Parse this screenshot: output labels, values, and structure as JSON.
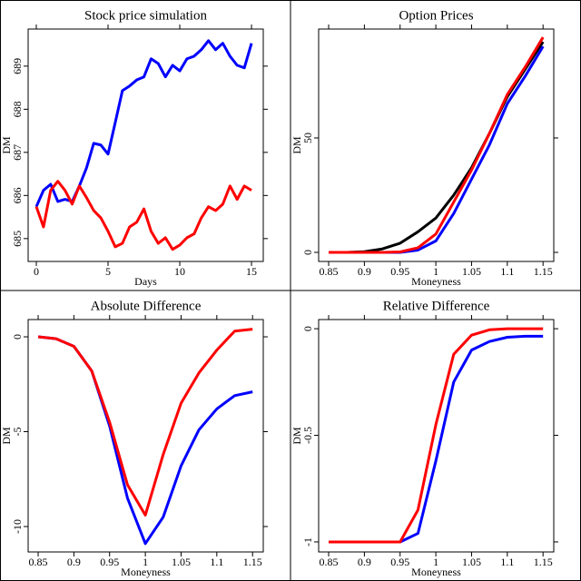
{
  "chart_data": [
    {
      "type": "line",
      "title": "Stock price simulation",
      "xlabel": "Days",
      "ylabel": "DM",
      "x": [
        0,
        0.5,
        1,
        1.5,
        2,
        2.5,
        3,
        3.5,
        4,
        4.5,
        5,
        5.5,
        6,
        6.5,
        7,
        7.5,
        8,
        8.5,
        9,
        9.5,
        10,
        10.5,
        11,
        11.5,
        12,
        12.5,
        13,
        13.5,
        14,
        14.5,
        15
      ],
      "series": [
        {
          "color": "#0000ff",
          "values": [
            685.74,
            686.12,
            686.26,
            685.86,
            685.91,
            685.86,
            686.22,
            686.64,
            687.21,
            687.17,
            686.96,
            687.69,
            688.43,
            688.54,
            688.68,
            688.75,
            689.17,
            689.06,
            688.75,
            689.02,
            688.89,
            689.17,
            689.23,
            689.38,
            689.59,
            689.38,
            689.53,
            689.23,
            689.02,
            688.96,
            689.53
          ]
        },
        {
          "color": "#ff0000",
          "values": [
            685.74,
            685.27,
            686.12,
            686.33,
            686.12,
            685.8,
            686.22,
            685.95,
            685.65,
            685.48,
            685.17,
            684.81,
            684.89,
            685.27,
            685.38,
            685.69,
            685.17,
            684.89,
            685.02,
            684.75,
            684.85,
            685.02,
            685.11,
            685.48,
            685.74,
            685.65,
            685.8,
            686.22,
            685.91,
            686.22,
            686.12
          ]
        }
      ],
      "xlim": [
        -0.57,
        15.82
      ],
      "ylim": [
        684.47,
        689.86
      ],
      "xticks": [
        0,
        5,
        10,
        15
      ],
      "yticks": [
        685,
        686,
        687,
        688,
        689
      ]
    },
    {
      "type": "line",
      "title": "Option Prices",
      "xlabel": "Moneyness",
      "ylabel": "DM",
      "x": [
        0.85,
        0.875,
        0.9,
        0.925,
        0.95,
        0.975,
        1.0,
        1.025,
        1.05,
        1.075,
        1.1,
        1.125,
        1.15
      ],
      "series": [
        {
          "color": "#000000",
          "values": [
            0,
            0,
            0.3,
            1.5,
            4,
            9,
            15,
            25,
            37,
            52,
            68,
            80,
            92
          ]
        },
        {
          "color": "#0000ff",
          "values": [
            0,
            0,
            0,
            0,
            0,
            1,
            5,
            17,
            32,
            47,
            65,
            77,
            90
          ]
        },
        {
          "color": "#ff0000",
          "values": [
            0,
            0,
            0,
            0,
            0.2,
            2,
            8,
            22,
            36,
            52,
            69,
            81,
            94
          ]
        }
      ],
      "xlim": [
        0.836,
        1.165
      ],
      "ylim": [
        -3.97,
        97.6
      ],
      "xticks": [
        0.85,
        0.9,
        0.95,
        1,
        1.05,
        1.1,
        1.15
      ],
      "yticks": [
        0,
        50
      ]
    },
    {
      "type": "line",
      "title": "Absolute Difference",
      "xlabel": "Moneyness",
      "ylabel": "DM",
      "x": [
        0.85,
        0.875,
        0.9,
        0.925,
        0.95,
        0.975,
        1.0,
        1.025,
        1.05,
        1.075,
        1.1,
        1.125,
        1.15
      ],
      "series": [
        {
          "color": "#0000ff",
          "values": [
            0,
            -0.1,
            -0.5,
            -1.8,
            -4.7,
            -8.5,
            -10.9,
            -9.5,
            -6.8,
            -4.9,
            -3.8,
            -3.1,
            -2.9
          ]
        },
        {
          "color": "#ff0000",
          "values": [
            0,
            -0.1,
            -0.5,
            -1.8,
            -4.5,
            -7.8,
            -9.4,
            -6.2,
            -3.5,
            -1.9,
            -0.7,
            0.3,
            0.4
          ]
        }
      ],
      "xlim": [
        0.836,
        1.165
      ],
      "ylim": [
        -11.34,
        0.91
      ],
      "xticks": [
        0.85,
        0.9,
        0.95,
        1,
        1.05,
        1.1,
        1.15
      ],
      "yticks": [
        -10,
        -5,
        0
      ]
    },
    {
      "type": "line",
      "title": "Relative Difference",
      "xlabel": "Moneyness",
      "ylabel": "DM",
      "x": [
        0.85,
        0.875,
        0.9,
        0.925,
        0.95,
        0.975,
        1.0,
        1.025,
        1.05,
        1.075,
        1.1,
        1.125,
        1.15
      ],
      "series": [
        {
          "color": "#0000ff",
          "values": [
            -1,
            -1,
            -1,
            -1,
            -1,
            -0.96,
            -0.62,
            -0.25,
            -0.1,
            -0.06,
            -0.04,
            -0.035,
            -0.035
          ]
        },
        {
          "color": "#ff0000",
          "values": [
            -1,
            -1,
            -1,
            -1,
            -1,
            -0.85,
            -0.45,
            -0.12,
            -0.03,
            -0.005,
            0,
            0,
            0
          ]
        }
      ],
      "xlim": [
        0.836,
        1.165
      ],
      "ylim": [
        -1.047,
        0.043
      ],
      "xticks": [
        0.85,
        0.9,
        0.95,
        1,
        1.05,
        1.1,
        1.15
      ],
      "yticks": [
        -1,
        -0.5,
        0
      ]
    }
  ]
}
